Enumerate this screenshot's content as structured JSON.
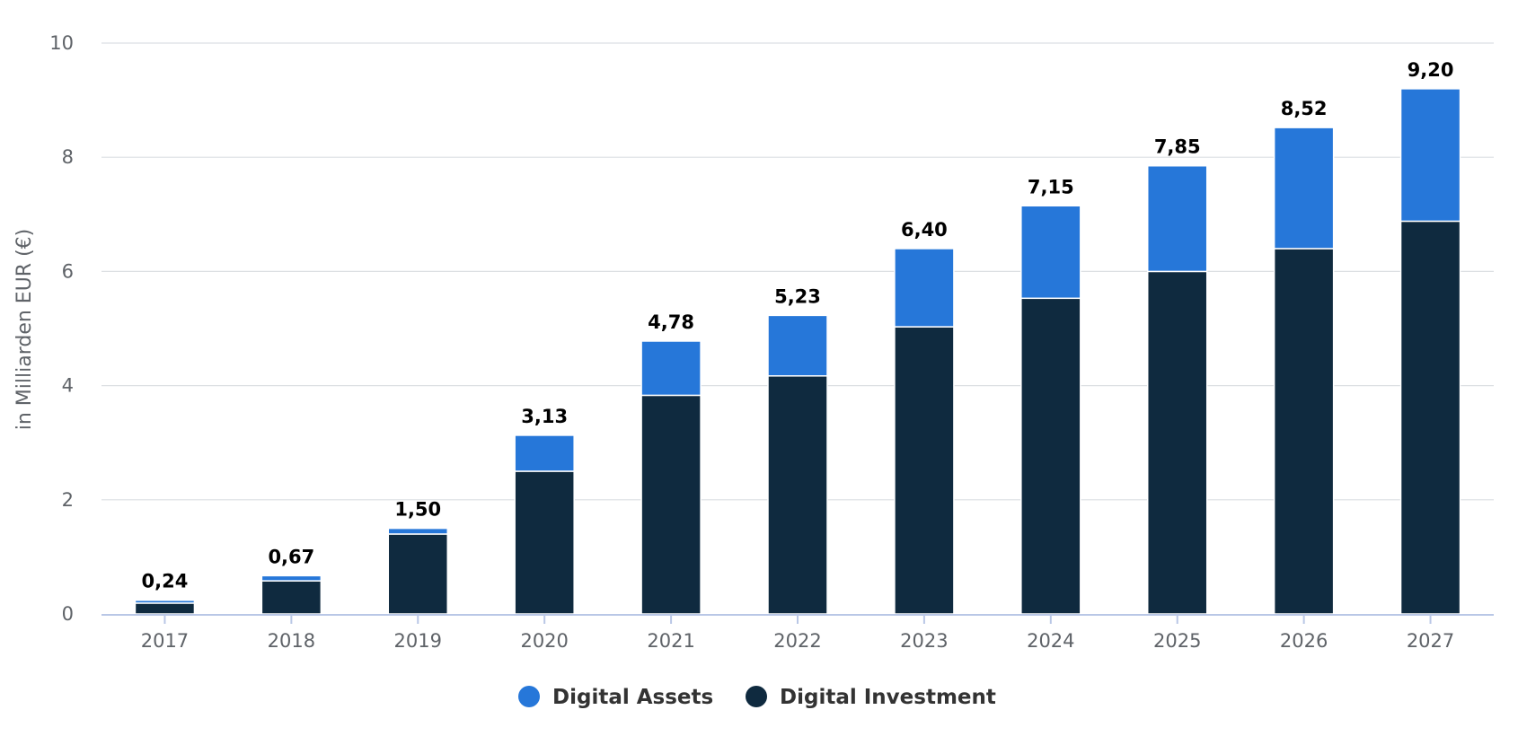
{
  "chart_data": {
    "type": "bar",
    "stacked": true,
    "categories": [
      "2017",
      "2018",
      "2019",
      "2020",
      "2021",
      "2022",
      "2023",
      "2024",
      "2025",
      "2026",
      "2027"
    ],
    "series": [
      {
        "name": "Digital Investment",
        "color": "#0f2a3f",
        "values": [
          0.19,
          0.58,
          1.4,
          2.5,
          3.83,
          4.17,
          5.03,
          5.53,
          6.0,
          6.4,
          6.88
        ]
      },
      {
        "name": "Digital Assets",
        "color": "#2677d9",
        "values": [
          0.05,
          0.09,
          0.1,
          0.63,
          0.95,
          1.06,
          1.37,
          1.62,
          1.85,
          2.12,
          2.32
        ]
      }
    ],
    "totals": [
      "0,24",
      "0,67",
      "1,50",
      "3,13",
      "4,78",
      "5,23",
      "6,40",
      "7,15",
      "7,85",
      "8,52",
      "9,20"
    ],
    "title": "",
    "xlabel": "",
    "ylabel": "in Milliarden EUR (€)",
    "ylim": [
      0,
      10
    ],
    "yticks": [
      0,
      2,
      4,
      6,
      8,
      10
    ],
    "grid": true,
    "legend": {
      "position": "bottom-center",
      "items": [
        {
          "label": "Digital Assets",
          "color": "#2677d9"
        },
        {
          "label": "Digital Investment",
          "color": "#0f2a3f"
        }
      ]
    }
  }
}
